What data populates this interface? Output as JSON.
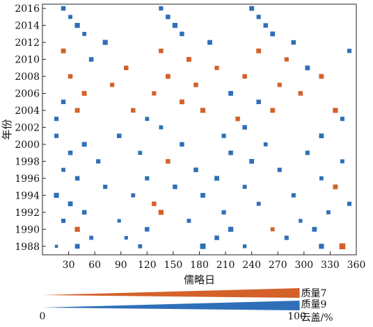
{
  "chart_data": {
    "type": "scatter",
    "title": "",
    "xlabel": "儒略日",
    "ylabel": "年份",
    "xlim": [
      0,
      360
    ],
    "ylim": [
      1987,
      2016.5
    ],
    "xticks": [
      30,
      60,
      90,
      120,
      150,
      180,
      210,
      240,
      270,
      300,
      330,
      360
    ],
    "yticks": [
      1988,
      1990,
      1992,
      1994,
      1996,
      1998,
      2000,
      2002,
      2004,
      2006,
      2008,
      2010,
      2012,
      2014,
      2016
    ],
    "series": [
      {
        "name": "质量7",
        "color": "#d4612a"
      },
      {
        "name": "质量9",
        "color": "#2f6fb8"
      }
    ],
    "point_size_encodes": "云盖/%",
    "size_legend": {
      "min": 0,
      "max": 100,
      "unit_label": "云盖/%"
    },
    "sampling_interval_days": 8,
    "points": [
      [
        1988,
        16,
        20,
        9
      ],
      [
        1988,
        40,
        55,
        9
      ],
      [
        1988,
        112,
        40,
        9
      ],
      [
        1988,
        184,
        70,
        9
      ],
      [
        1988,
        232,
        35,
        9
      ],
      [
        1988,
        320,
        60,
        9
      ],
      [
        1988,
        344,
        80,
        7
      ],
      [
        1989,
        56,
        40,
        9
      ],
      [
        1989,
        96,
        30,
        9
      ],
      [
        1989,
        200,
        50,
        9
      ],
      [
        1989,
        280,
        45,
        9
      ],
      [
        1990,
        40,
        60,
        7
      ],
      [
        1990,
        120,
        50,
        9
      ],
      [
        1990,
        216,
        60,
        9
      ],
      [
        1990,
        264,
        40,
        7
      ],
      [
        1990,
        312,
        55,
        9
      ],
      [
        1991,
        24,
        45,
        9
      ],
      [
        1991,
        88,
        30,
        9
      ],
      [
        1991,
        168,
        40,
        9
      ],
      [
        1991,
        296,
        35,
        9
      ],
      [
        1992,
        48,
        50,
        9
      ],
      [
        1992,
        136,
        60,
        7
      ],
      [
        1992,
        208,
        45,
        9
      ],
      [
        1992,
        328,
        40,
        9
      ],
      [
        1993,
        32,
        55,
        9
      ],
      [
        1993,
        128,
        50,
        7
      ],
      [
        1993,
        248,
        40,
        9
      ],
      [
        1993,
        352,
        45,
        9
      ],
      [
        1994,
        16,
        60,
        9
      ],
      [
        1994,
        104,
        40,
        9
      ],
      [
        1994,
        184,
        55,
        9
      ],
      [
        1994,
        288,
        45,
        9
      ],
      [
        1995,
        72,
        45,
        9
      ],
      [
        1995,
        152,
        50,
        9
      ],
      [
        1995,
        232,
        40,
        9
      ],
      [
        1995,
        336,
        55,
        7
      ],
      [
        1996,
        40,
        50,
        9
      ],
      [
        1996,
        120,
        45,
        9
      ],
      [
        1996,
        200,
        55,
        9
      ],
      [
        1996,
        320,
        40,
        9
      ],
      [
        1997,
        24,
        40,
        9
      ],
      [
        1997,
        176,
        50,
        9
      ],
      [
        1997,
        272,
        45,
        9
      ],
      [
        1998,
        64,
        45,
        9
      ],
      [
        1998,
        144,
        50,
        7
      ],
      [
        1998,
        240,
        55,
        9
      ],
      [
        1998,
        344,
        40,
        9
      ],
      [
        1999,
        32,
        50,
        9
      ],
      [
        1999,
        112,
        40,
        9
      ],
      [
        1999,
        216,
        50,
        9
      ],
      [
        1999,
        304,
        45,
        9
      ],
      [
        2000,
        48,
        55,
        9
      ],
      [
        2000,
        160,
        50,
        9
      ],
      [
        2000,
        256,
        40,
        9
      ],
      [
        2001,
        16,
        45,
        9
      ],
      [
        2001,
        88,
        50,
        9
      ],
      [
        2001,
        208,
        45,
        9
      ],
      [
        2001,
        320,
        55,
        9
      ],
      [
        2002,
        136,
        40,
        9
      ],
      [
        2002,
        232,
        50,
        9
      ],
      [
        2003,
        16,
        45,
        9
      ],
      [
        2003,
        120,
        40,
        9
      ],
      [
        2003,
        224,
        50,
        7
      ],
      [
        2003,
        344,
        45,
        9
      ],
      [
        2004,
        40,
        55,
        7
      ],
      [
        2004,
        104,
        50,
        7
      ],
      [
        2004,
        184,
        60,
        7
      ],
      [
        2004,
        264,
        55,
        7
      ],
      [
        2004,
        336,
        60,
        7
      ],
      [
        2005,
        24,
        50,
        9
      ],
      [
        2005,
        160,
        55,
        7
      ],
      [
        2005,
        248,
        50,
        9
      ],
      [
        2006,
        48,
        55,
        7
      ],
      [
        2006,
        128,
        45,
        7
      ],
      [
        2006,
        216,
        55,
        9
      ],
      [
        2006,
        296,
        50,
        7
      ],
      [
        2007,
        80,
        45,
        7
      ],
      [
        2007,
        176,
        50,
        7
      ],
      [
        2007,
        272,
        45,
        7
      ],
      [
        2008,
        32,
        50,
        7
      ],
      [
        2008,
        144,
        55,
        7
      ],
      [
        2008,
        232,
        50,
        7
      ],
      [
        2008,
        320,
        55,
        7
      ],
      [
        2009,
        96,
        50,
        7
      ],
      [
        2009,
        200,
        45,
        7
      ],
      [
        2009,
        304,
        55,
        9
      ],
      [
        2010,
        56,
        50,
        9
      ],
      [
        2010,
        168,
        55,
        7
      ],
      [
        2010,
        280,
        45,
        7
      ],
      [
        2011,
        24,
        55,
        7
      ],
      [
        2011,
        136,
        50,
        7
      ],
      [
        2011,
        248,
        55,
        7
      ],
      [
        2011,
        352,
        45,
        9
      ],
      [
        2012,
        72,
        60,
        9
      ],
      [
        2012,
        192,
        55,
        9
      ],
      [
        2012,
        288,
        50,
        9
      ],
      [
        2013,
        48,
        40,
        9
      ],
      [
        2013,
        160,
        50,
        9
      ],
      [
        2013,
        264,
        55,
        9
      ],
      [
        2014,
        40,
        60,
        9
      ],
      [
        2014,
        152,
        60,
        9
      ],
      [
        2014,
        256,
        50,
        9
      ],
      [
        2015,
        32,
        40,
        9
      ],
      [
        2015,
        144,
        50,
        9
      ],
      [
        2015,
        248,
        45,
        9
      ],
      [
        2016,
        24,
        50,
        9
      ],
      [
        2016,
        136,
        45,
        9
      ],
      [
        2016,
        240,
        55,
        9
      ]
    ]
  }
}
